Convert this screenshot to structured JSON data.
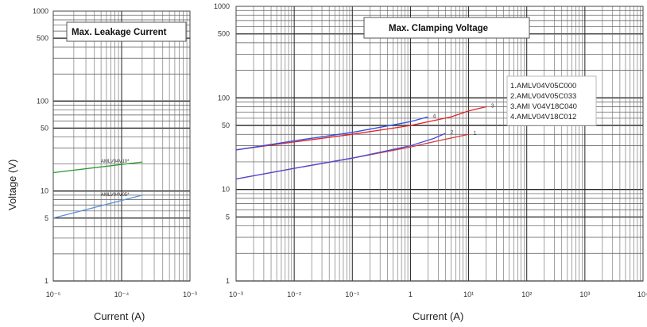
{
  "chart_data": [
    {
      "type": "line",
      "title": "Max. Leakage Current",
      "xlabel": "Current (A)",
      "ylabel": "Voltage (V)",
      "x_scale": "log",
      "y_scale": "log",
      "xlim": [
        1e-05,
        0.001
      ],
      "ylim": [
        1,
        1000
      ],
      "x_tick_labels": [
        "10⁻⁵",
        "10⁻⁴",
        "10⁻³"
      ],
      "y_tick_labels": [
        "1",
        "5",
        "10",
        "50",
        "100",
        "500",
        "1000"
      ],
      "grid": true,
      "series": [
        {
          "name": "AMLV04V10*",
          "color": "#2e9b2e",
          "x": [
            1e-05,
            0.0002
          ],
          "y": [
            16,
            21
          ]
        },
        {
          "name": "AMLV04V05*",
          "color": "#5b8fd9",
          "x": [
            1e-05,
            0.0002
          ],
          "y": [
            5,
            9
          ]
        }
      ]
    },
    {
      "type": "line",
      "title": "Max. Clamping Voltage",
      "xlabel": "Current   (A)",
      "ylabel": "",
      "x_scale": "log",
      "y_scale": "log",
      "xlim": [
        0.001,
        10000
      ],
      "ylim": [
        1,
        1000
      ],
      "x_tick_labels": [
        "10⁻³",
        "10⁻²",
        "10⁻¹",
        "1",
        "10¹",
        "10²",
        "10³",
        "10⁴"
      ],
      "y_tick_labels": [
        "1",
        "5",
        "10",
        "50",
        "100",
        "500",
        "1000"
      ],
      "grid": true,
      "legend": [
        "1.AMLV04V05C000",
        "2.AMLV04V05C033",
        "3.AMI V04V18C040",
        "4.AMLV04V18C012"
      ],
      "legend_position": "right",
      "series": [
        {
          "name": "1",
          "color": "#d23b3b",
          "x": [
            0.001,
            0.01,
            0.1,
            1,
            3,
            10
          ],
          "y": [
            13,
            17,
            22,
            29,
            34,
            40
          ]
        },
        {
          "name": "2",
          "color": "#4a4ad8",
          "x": [
            0.001,
            0.01,
            0.1,
            1,
            2.5,
            4
          ],
          "y": [
            13,
            17,
            22,
            30,
            36,
            41
          ]
        },
        {
          "name": "3",
          "color": "#e52121",
          "x": [
            0.001,
            0.01,
            0.1,
            1,
            5,
            10,
            20
          ],
          "y": [
            27,
            33,
            40,
            50,
            62,
            72,
            80
          ]
        },
        {
          "name": "4",
          "color": "#2d4ee8",
          "x": [
            0.001,
            0.01,
            0.1,
            1,
            2
          ],
          "y": [
            27,
            34,
            42,
            55,
            62
          ]
        }
      ]
    }
  ],
  "y_axis_title": "Voltage    (V)",
  "left_title": "Max. Leakage Current",
  "right_title": "Max. Clamping Voltage",
  "left_xlabel": "Current  (A)",
  "right_xlabel": "Current   (A)",
  "ytick_labels": [
    "1000",
    "500",
    "100",
    "50",
    "10",
    "5",
    "1"
  ]
}
